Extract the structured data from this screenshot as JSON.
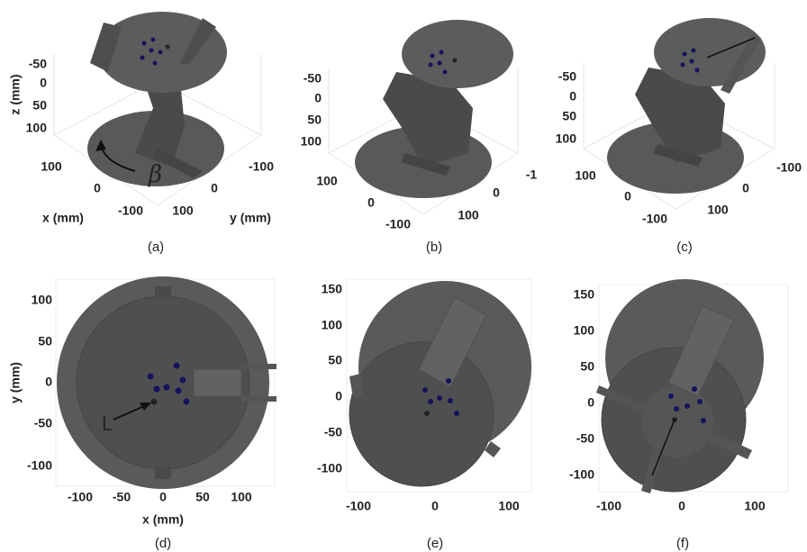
{
  "panels": [
    {
      "label": "(a)",
      "z_label": "z (mm)",
      "z_ticks": [
        -50,
        0,
        50,
        100
      ],
      "x_label": "x (mm)",
      "x_ticks": [
        100,
        0,
        -100
      ],
      "y_label": "y (mm)",
      "y_ticks": [
        -100,
        0,
        100
      ],
      "annotation": "β"
    },
    {
      "label": "(b)",
      "z_ticks": [
        -50,
        0,
        50,
        100
      ],
      "x_ticks": [
        100,
        0,
        -100
      ],
      "y_ticks": [
        -1,
        0,
        100
      ]
    },
    {
      "label": "(c)",
      "z_ticks": [
        -50,
        0,
        50,
        100
      ],
      "x_ticks": [
        100,
        0,
        -100
      ],
      "y_ticks": [
        -100,
        0,
        100
      ]
    },
    {
      "label": "(d)",
      "x_label": "x (mm)",
      "y_label": "y (mm)",
      "x_ticks": [
        -100,
        -50,
        0,
        50,
        100
      ],
      "y_ticks": [
        100,
        50,
        0,
        -50,
        -100
      ],
      "annotation": "L"
    },
    {
      "label": "(e)",
      "x_ticks": [
        -100,
        0,
        100
      ],
      "y_ticks": [
        150,
        100,
        50,
        0,
        -50,
        -100
      ]
    },
    {
      "label": "(f)",
      "x_ticks": [
        -100,
        0,
        100
      ],
      "y_ticks": [
        150,
        100,
        50,
        0,
        -50,
        -100
      ]
    }
  ]
}
